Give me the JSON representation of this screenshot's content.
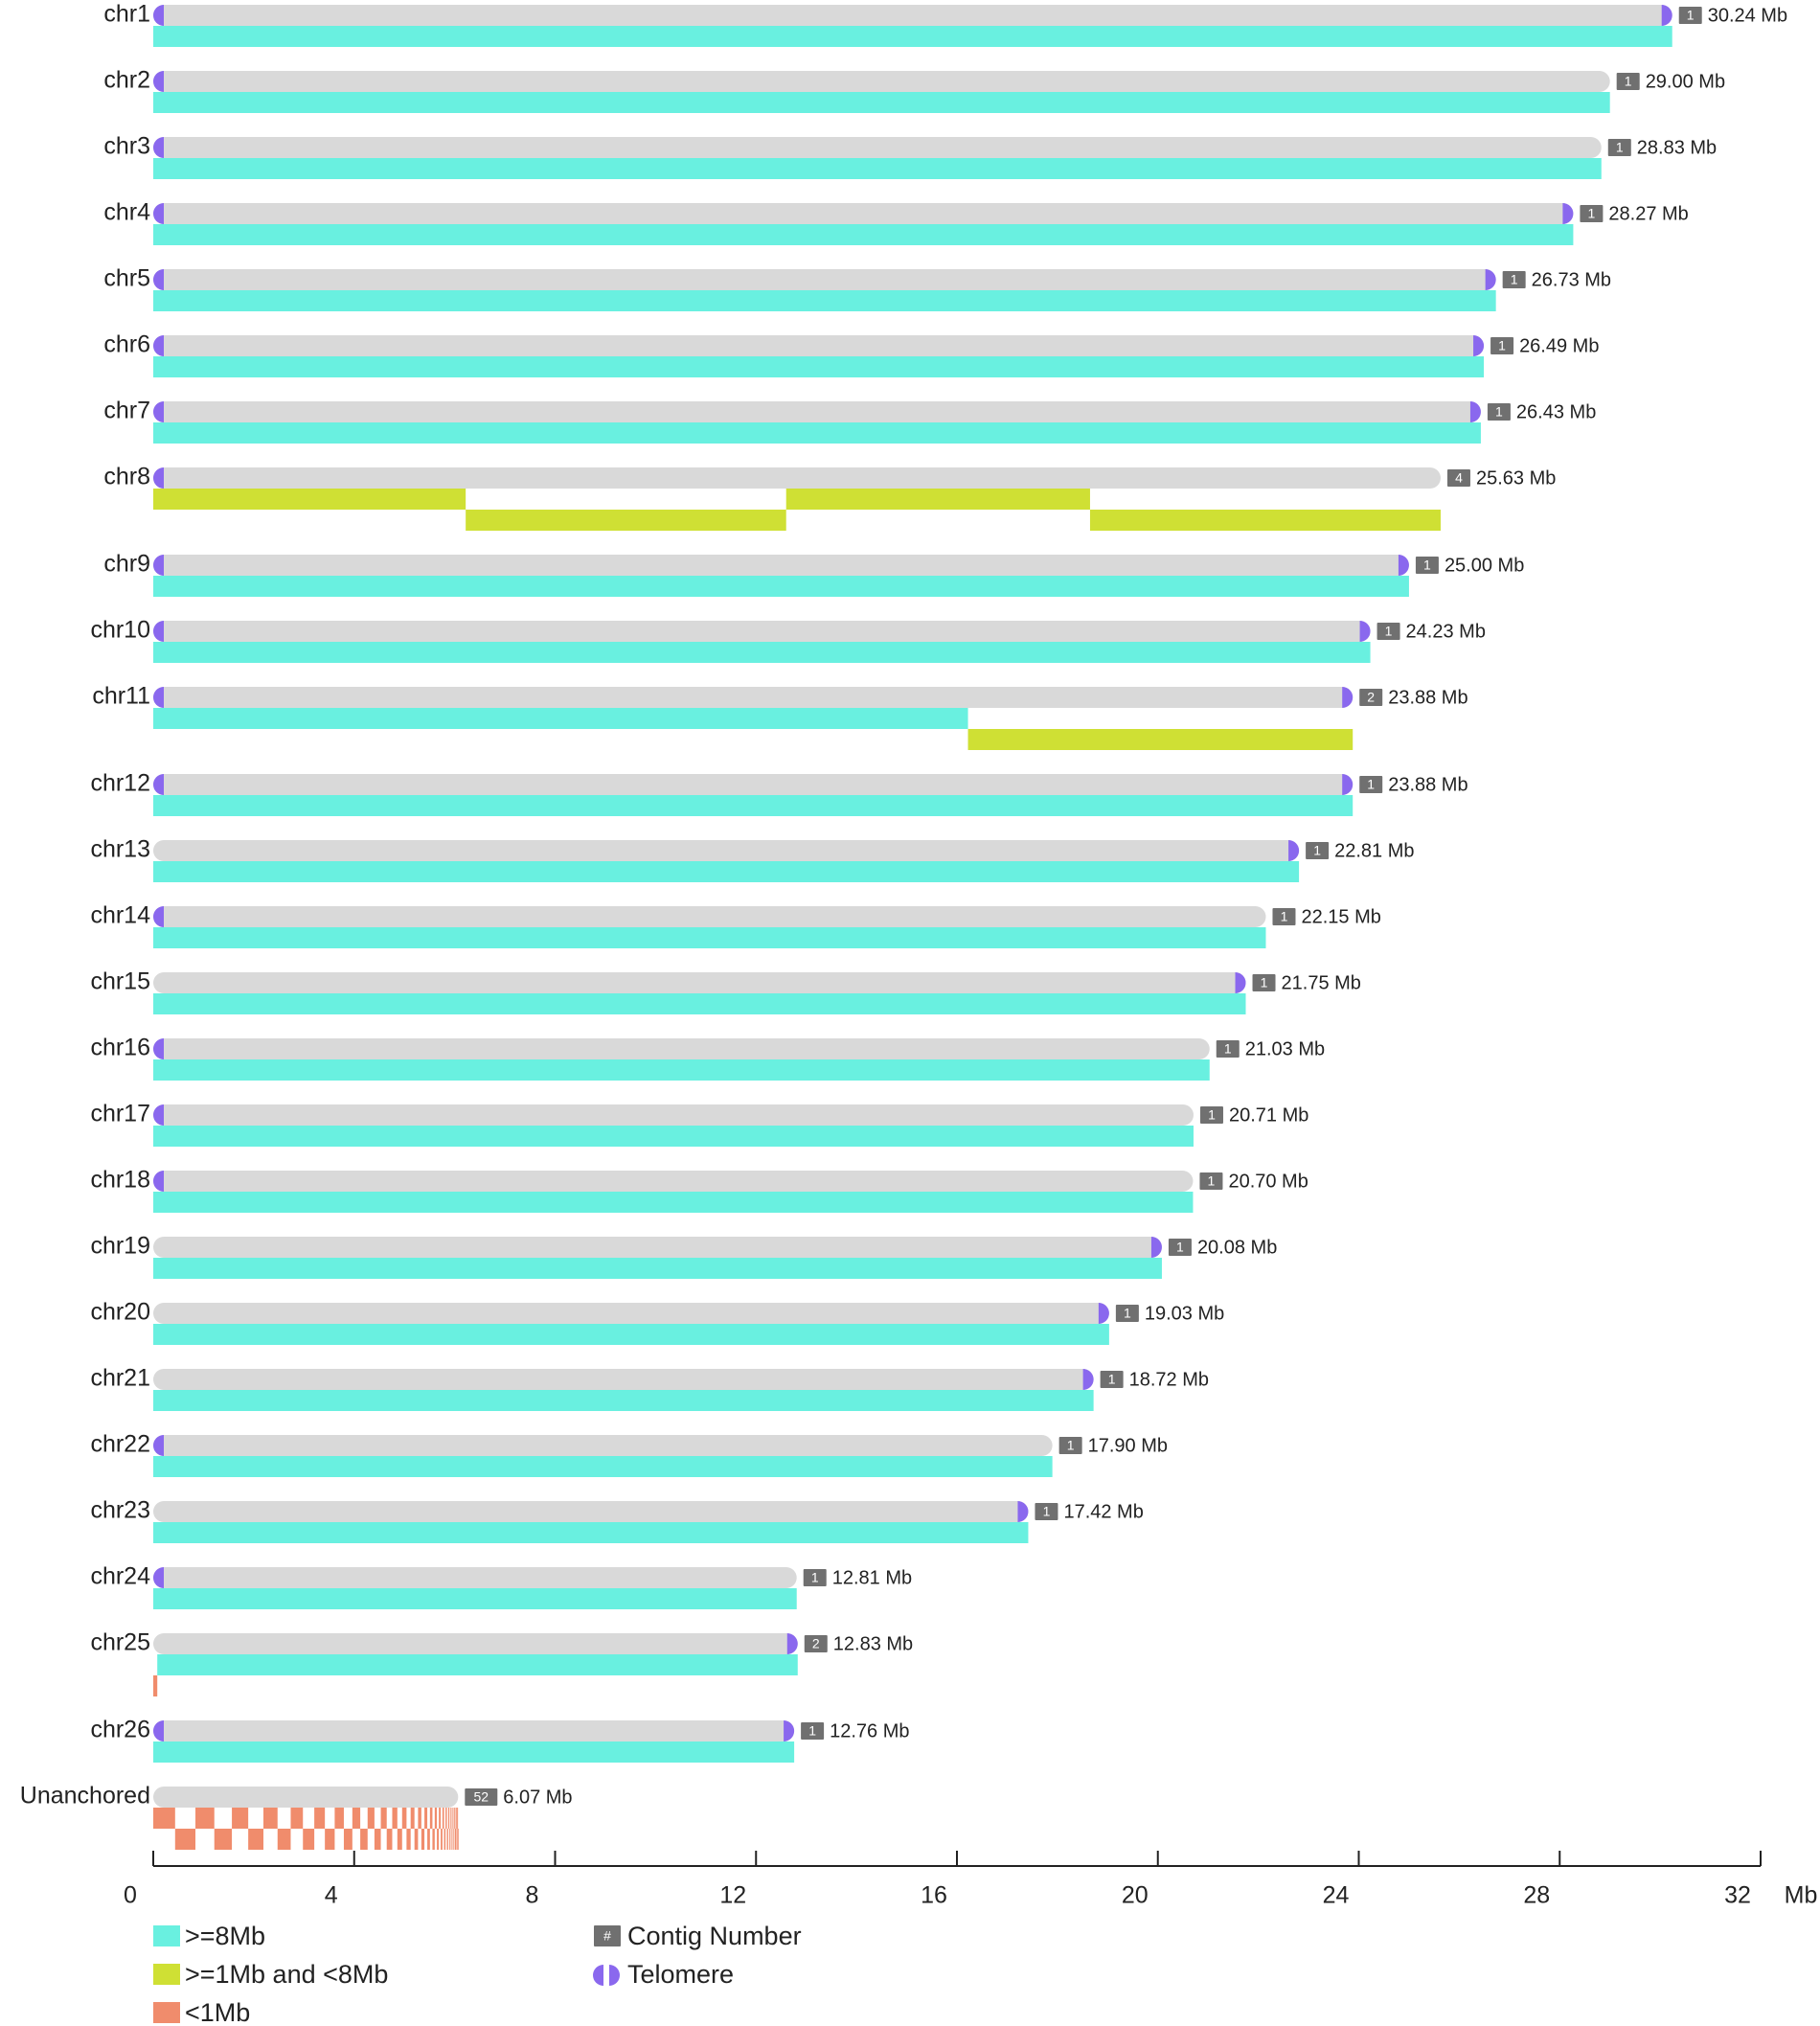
{
  "chart_data": {
    "type": "chromosome-ideogram",
    "xlabel": "Mb",
    "xlim": [
      0,
      32
    ],
    "xticks": [
      0,
      4,
      8,
      12,
      16,
      20,
      24,
      28,
      32
    ],
    "colors": {
      "large": "#69f0e0",
      "medium": "#cfe034",
      "small": "#f08c6c",
      "chromosome": "#d9d9d9",
      "telomere": "#8a68ee",
      "badge": "#707070"
    },
    "chromosomes": [
      {
        "name": "chr1",
        "length": 30.24,
        "length_label": "30.24 Mb",
        "contig_count": "1",
        "telomere_start": true,
        "telomere_end": true,
        "contigs": [
          [
            {
              "start": 0,
              "end": 30.24,
              "cls": "large"
            }
          ]
        ]
      },
      {
        "name": "chr2",
        "length": 29.0,
        "length_label": "29.00 Mb",
        "contig_count": "1",
        "telomere_start": true,
        "telomere_end": false,
        "contigs": [
          [
            {
              "start": 0,
              "end": 29.0,
              "cls": "large"
            }
          ]
        ]
      },
      {
        "name": "chr3",
        "length": 28.83,
        "length_label": "28.83 Mb",
        "contig_count": "1",
        "telomere_start": true,
        "telomere_end": false,
        "contigs": [
          [
            {
              "start": 0,
              "end": 28.83,
              "cls": "large"
            }
          ]
        ]
      },
      {
        "name": "chr4",
        "length": 28.27,
        "length_label": "28.27 Mb",
        "contig_count": "1",
        "telomere_start": true,
        "telomere_end": true,
        "contigs": [
          [
            {
              "start": 0,
              "end": 28.27,
              "cls": "large"
            }
          ]
        ]
      },
      {
        "name": "chr5",
        "length": 26.73,
        "length_label": "26.73 Mb",
        "contig_count": "1",
        "telomere_start": true,
        "telomere_end": true,
        "contigs": [
          [
            {
              "start": 0,
              "end": 26.73,
              "cls": "large"
            }
          ]
        ]
      },
      {
        "name": "chr6",
        "length": 26.49,
        "length_label": "26.49 Mb",
        "contig_count": "1",
        "telomere_start": true,
        "telomere_end": true,
        "contigs": [
          [
            {
              "start": 0,
              "end": 26.49,
              "cls": "large"
            }
          ]
        ]
      },
      {
        "name": "chr7",
        "length": 26.43,
        "length_label": "26.43 Mb",
        "contig_count": "1",
        "telomere_start": true,
        "telomere_end": true,
        "contigs": [
          [
            {
              "start": 0,
              "end": 26.43,
              "cls": "large"
            }
          ]
        ]
      },
      {
        "name": "chr8",
        "length": 25.63,
        "length_label": "25.63 Mb",
        "contig_count": "4",
        "telomere_start": true,
        "telomere_end": false,
        "contigs": [
          [
            {
              "start": 0,
              "end": 6.22,
              "cls": "medium"
            },
            {
              "start": 12.6,
              "end": 18.65,
              "cls": "medium"
            }
          ],
          [
            {
              "start": 6.22,
              "end": 12.6,
              "cls": "medium"
            },
            {
              "start": 18.65,
              "end": 25.63,
              "cls": "medium"
            }
          ]
        ]
      },
      {
        "name": "chr9",
        "length": 25.0,
        "length_label": "25.00 Mb",
        "contig_count": "1",
        "telomere_start": true,
        "telomere_end": true,
        "contigs": [
          [
            {
              "start": 0,
              "end": 25.0,
              "cls": "large"
            }
          ]
        ]
      },
      {
        "name": "chr10",
        "length": 24.23,
        "length_label": "24.23 Mb",
        "contig_count": "1",
        "telomere_start": true,
        "telomere_end": true,
        "contigs": [
          [
            {
              "start": 0,
              "end": 24.23,
              "cls": "large"
            }
          ]
        ]
      },
      {
        "name": "chr11",
        "length": 23.88,
        "length_label": "23.88 Mb",
        "contig_count": "2",
        "telomere_start": true,
        "telomere_end": true,
        "contigs": [
          [
            {
              "start": 0,
              "end": 16.22,
              "cls": "large"
            }
          ],
          [
            {
              "start": 16.22,
              "end": 23.88,
              "cls": "medium"
            }
          ]
        ]
      },
      {
        "name": "chr12",
        "length": 23.88,
        "length_label": "23.88 Mb",
        "contig_count": "1",
        "telomere_start": true,
        "telomere_end": true,
        "contigs": [
          [
            {
              "start": 0,
              "end": 23.88,
              "cls": "large"
            }
          ]
        ]
      },
      {
        "name": "chr13",
        "length": 22.81,
        "length_label": "22.81 Mb",
        "contig_count": "1",
        "telomere_start": false,
        "telomere_end": true,
        "contigs": [
          [
            {
              "start": 0,
              "end": 22.81,
              "cls": "large"
            }
          ]
        ]
      },
      {
        "name": "chr14",
        "length": 22.15,
        "length_label": "22.15 Mb",
        "contig_count": "1",
        "telomere_start": true,
        "telomere_end": false,
        "contigs": [
          [
            {
              "start": 0,
              "end": 22.15,
              "cls": "large"
            }
          ]
        ]
      },
      {
        "name": "chr15",
        "length": 21.75,
        "length_label": "21.75 Mb",
        "contig_count": "1",
        "telomere_start": false,
        "telomere_end": true,
        "contigs": [
          [
            {
              "start": 0,
              "end": 21.75,
              "cls": "large"
            }
          ]
        ]
      },
      {
        "name": "chr16",
        "length": 21.03,
        "length_label": "21.03 Mb",
        "contig_count": "1",
        "telomere_start": true,
        "telomere_end": false,
        "contigs": [
          [
            {
              "start": 0,
              "end": 21.03,
              "cls": "large"
            }
          ]
        ]
      },
      {
        "name": "chr17",
        "length": 20.71,
        "length_label": "20.71 Mb",
        "contig_count": "1",
        "telomere_start": true,
        "telomere_end": false,
        "contigs": [
          [
            {
              "start": 0,
              "end": 20.71,
              "cls": "large"
            }
          ]
        ]
      },
      {
        "name": "chr18",
        "length": 20.7,
        "length_label": "20.70 Mb",
        "contig_count": "1",
        "telomere_start": true,
        "telomere_end": false,
        "contigs": [
          [
            {
              "start": 0,
              "end": 20.7,
              "cls": "large"
            }
          ]
        ]
      },
      {
        "name": "chr19",
        "length": 20.08,
        "length_label": "20.08 Mb",
        "contig_count": "1",
        "telomere_start": false,
        "telomere_end": true,
        "contigs": [
          [
            {
              "start": 0,
              "end": 20.08,
              "cls": "large"
            }
          ]
        ]
      },
      {
        "name": "chr20",
        "length": 19.03,
        "length_label": "19.03 Mb",
        "contig_count": "1",
        "telomere_start": false,
        "telomere_end": true,
        "contigs": [
          [
            {
              "start": 0,
              "end": 19.03,
              "cls": "large"
            }
          ]
        ]
      },
      {
        "name": "chr21",
        "length": 18.72,
        "length_label": "18.72 Mb",
        "contig_count": "1",
        "telomere_start": false,
        "telomere_end": true,
        "contigs": [
          [
            {
              "start": 0,
              "end": 18.72,
              "cls": "large"
            }
          ]
        ]
      },
      {
        "name": "chr22",
        "length": 17.9,
        "length_label": "17.90 Mb",
        "contig_count": "1",
        "telomere_start": true,
        "telomere_end": false,
        "contigs": [
          [
            {
              "start": 0,
              "end": 17.9,
              "cls": "large"
            }
          ]
        ]
      },
      {
        "name": "chr23",
        "length": 17.42,
        "length_label": "17.42 Mb",
        "contig_count": "1",
        "telomere_start": false,
        "telomere_end": true,
        "contigs": [
          [
            {
              "start": 0,
              "end": 17.42,
              "cls": "large"
            }
          ]
        ]
      },
      {
        "name": "chr24",
        "length": 12.81,
        "length_label": "12.81 Mb",
        "contig_count": "1",
        "telomere_start": true,
        "telomere_end": false,
        "contigs": [
          [
            {
              "start": 0,
              "end": 12.81,
              "cls": "large"
            }
          ]
        ]
      },
      {
        "name": "chr25",
        "length": 12.83,
        "length_label": "12.83 Mb",
        "contig_count": "2",
        "telomere_start": false,
        "telomere_end": true,
        "contigs": [
          [
            {
              "start": 0.08,
              "end": 12.83,
              "cls": "large"
            }
          ],
          [
            {
              "start": 0,
              "end": 0.08,
              "cls": "small"
            }
          ]
        ]
      },
      {
        "name": "chr26",
        "length": 12.76,
        "length_label": "12.76 Mb",
        "contig_count": "1",
        "telomere_start": true,
        "telomere_end": true,
        "contigs": [
          [
            {
              "start": 0,
              "end": 12.76,
              "cls": "large"
            }
          ]
        ]
      },
      {
        "name": "Unanchored",
        "length": 6.07,
        "length_label": "6.07 Mb",
        "contig_count": "52",
        "telomere_start": false,
        "telomere_end": false,
        "unanchored_contig_count": 52,
        "contigs": []
      }
    ],
    "legend": {
      "large": ">=8Mb",
      "medium": ">=1Mb and <8Mb",
      "small": "<1Mb",
      "contig_symbol": "#",
      "contig": "Contig Number",
      "telomere": "Telomere"
    }
  }
}
